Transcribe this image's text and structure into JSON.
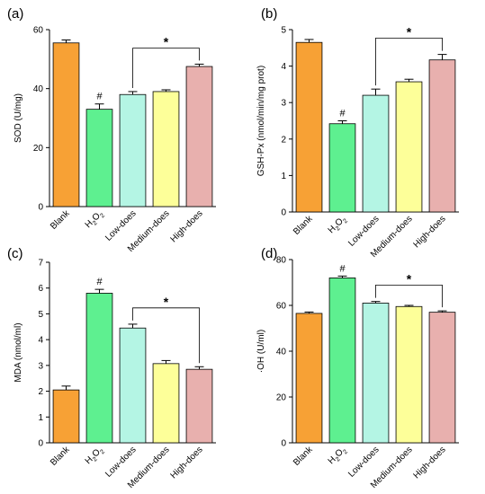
{
  "colors": {
    "Blank": "#f7a135",
    "H2O2": "#5ef090",
    "Low-does": "#b4f5e4",
    "Medium-does": "#fdff99",
    "High-does": "#e8b0ae"
  },
  "chart_data": [
    {
      "panel_label": "(a)",
      "type": "bar",
      "ylabel": "SOD (U/mg)",
      "ylim": [
        0,
        60
      ],
      "yticks": [
        0,
        20,
        40,
        60
      ],
      "categories": [
        "Blank",
        "H2O2",
        "Low-does",
        "Medium-does",
        "High-does"
      ],
      "values": [
        55.5,
        33.0,
        38.0,
        39.0,
        47.5
      ],
      "errors": [
        1.0,
        1.8,
        1.0,
        0.6,
        0.8
      ],
      "hash_marks": [
        {
          "category": "H2O2",
          "text": "#"
        }
      ],
      "significance": [
        {
          "from": "Low-does",
          "to": "High-does",
          "text": "*"
        }
      ]
    },
    {
      "panel_label": "(b)",
      "type": "bar",
      "ylabel": "GSH-Px (nmol/min/mg prot)",
      "ylim": [
        0,
        5
      ],
      "yticks": [
        0,
        1,
        2,
        3,
        4,
        5
      ],
      "categories": [
        "Blank",
        "H2O2",
        "Low-does",
        "Medium-does",
        "High-does"
      ],
      "values": [
        4.65,
        2.42,
        3.2,
        3.57,
        4.17
      ],
      "errors": [
        0.08,
        0.08,
        0.17,
        0.07,
        0.15
      ],
      "hash_marks": [
        {
          "category": "H2O2",
          "text": "#"
        }
      ],
      "significance": [
        {
          "from": "Low-does",
          "to": "High-does",
          "text": "*"
        }
      ]
    },
    {
      "panel_label": "(c)",
      "type": "bar",
      "ylabel": "MDA (nmol/ml)",
      "ylim": [
        0,
        7
      ],
      "yticks": [
        0,
        1,
        2,
        3,
        4,
        5,
        6,
        7
      ],
      "categories": [
        "Blank",
        "H2O2",
        "Low-does",
        "Medium-does",
        "High-does"
      ],
      "values": [
        2.05,
        5.8,
        4.45,
        3.07,
        2.85
      ],
      "errors": [
        0.15,
        0.15,
        0.15,
        0.12,
        0.1
      ],
      "hash_marks": [
        {
          "category": "H2O2",
          "text": "#"
        }
      ],
      "significance": [
        {
          "from": "Low-does",
          "to": "High-does",
          "text": "*"
        }
      ]
    },
    {
      "panel_label": "(d)",
      "type": "bar",
      "ylabel": "·OH (U/ml)",
      "ylim": [
        0,
        80
      ],
      "yticks": [
        0,
        20,
        40,
        60,
        80
      ],
      "categories": [
        "Blank",
        "H2O2",
        "Low-does",
        "Medium-does",
        "High-does"
      ],
      "values": [
        56.5,
        72.0,
        61.0,
        59.5,
        57.0
      ],
      "errors": [
        0.6,
        0.8,
        0.7,
        0.5,
        0.6
      ],
      "hash_marks": [
        {
          "category": "H2O2",
          "text": "#"
        }
      ],
      "significance": [
        {
          "from": "Low-does",
          "to": "High-does",
          "text": "*"
        }
      ]
    }
  ]
}
